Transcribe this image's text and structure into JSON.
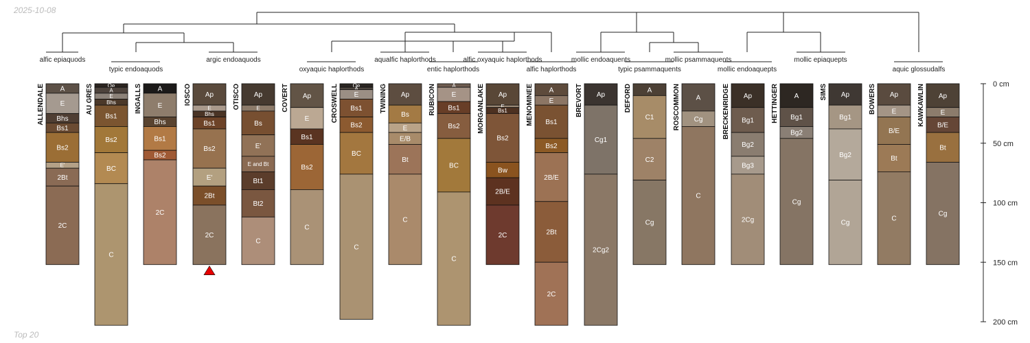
{
  "date": "2025-10-08",
  "footer": "Top 20",
  "depth_axis": {
    "unit": "cm",
    "min": 0,
    "max": 200,
    "ticks": [
      "0 cm",
      "50 cm",
      "100 cm",
      "150 cm",
      "200 cm"
    ]
  },
  "taxa": [
    "alfic epiaquods",
    "typic endoaquods",
    "argic endoaquods",
    "oxyaquic haplorthods",
    "aqualfic haplorthods",
    "entic haplorthods",
    "alfic oxyaquic haplorthods",
    "alfic haplorthods",
    "mollic endoaquents",
    "typic psammaquents",
    "mollic psammaquents",
    "mollic endoaquepts",
    "mollic epiaquepts",
    "aquic glossudalfs"
  ],
  "marker": {
    "profile": "IOSCO",
    "color": "#e60000"
  },
  "profiles": [
    {
      "name": "ALLENDALE",
      "horizons": [
        {
          "label": "A",
          "top": 0,
          "bottom": 8,
          "color": "#5d5147"
        },
        {
          "label": "E",
          "top": 8,
          "bottom": 25,
          "color": "#a59a90"
        },
        {
          "label": "Bhs",
          "top": 25,
          "bottom": 33,
          "color": "#4f3e33"
        },
        {
          "label": "Bs1",
          "top": 33,
          "bottom": 41,
          "color": "#6b4b32"
        },
        {
          "label": "Bs2",
          "top": 41,
          "bottom": 66,
          "color": "#9b6e35"
        },
        {
          "label": "E'",
          "top": 66,
          "bottom": 71,
          "color": "#b4a187"
        },
        {
          "label": "2Bt",
          "top": 71,
          "bottom": 86,
          "color": "#8a6b55"
        },
        {
          "label": "2C",
          "top": 86,
          "bottom": 152,
          "color": "#8b6b54"
        }
      ]
    },
    {
      "name": "AU GRES",
      "horizons": [
        {
          "label": "Oe",
          "top": 0,
          "bottom": 3,
          "color": "#2c2520"
        },
        {
          "label": "A",
          "top": 3,
          "bottom": 8,
          "color": "#4d433c"
        },
        {
          "label": "E",
          "top": 8,
          "bottom": 13,
          "color": "#8c8279"
        },
        {
          "label": "Bhs",
          "top": 13,
          "bottom": 18,
          "color": "#4b3829"
        },
        {
          "label": "Bs1",
          "top": 18,
          "bottom": 36,
          "color": "#7b5530"
        },
        {
          "label": "Bs2",
          "top": 36,
          "bottom": 58,
          "color": "#a27839"
        },
        {
          "label": "BC",
          "top": 58,
          "bottom": 84,
          "color": "#b38a52"
        },
        {
          "label": "C",
          "top": 84,
          "bottom": 203,
          "color": "#ad956f"
        }
      ]
    },
    {
      "name": "INGALLS",
      "horizons": [
        {
          "label": "A",
          "top": 0,
          "bottom": 8,
          "color": "#1c1a19"
        },
        {
          "label": "E",
          "top": 8,
          "bottom": 28,
          "color": "#8e7d6c"
        },
        {
          "label": "Bhs",
          "top": 28,
          "bottom": 36,
          "color": "#594330"
        },
        {
          "label": "Bs1",
          "top": 36,
          "bottom": 56,
          "color": "#b27a45"
        },
        {
          "label": "Bs2",
          "top": 56,
          "bottom": 64,
          "color": "#a05a35"
        },
        {
          "label": "2C",
          "top": 64,
          "bottom": 152,
          "color": "#ad8269"
        }
      ]
    },
    {
      "name": "IOSCO",
      "horizons": [
        {
          "label": "Ap",
          "top": 0,
          "bottom": 18,
          "color": "#5a4a3c"
        },
        {
          "label": "E",
          "top": 18,
          "bottom": 23,
          "color": "#a9998b"
        },
        {
          "label": "Bhs",
          "top": 23,
          "bottom": 28,
          "color": "#4a3425"
        },
        {
          "label": "Bs1",
          "top": 28,
          "bottom": 38,
          "color": "#6d4328"
        },
        {
          "label": "Bs2",
          "top": 38,
          "bottom": 71,
          "color": "#97724f"
        },
        {
          "label": "E'",
          "top": 71,
          "bottom": 86,
          "color": "#b3a080"
        },
        {
          "label": "2Bt",
          "top": 86,
          "bottom": 102,
          "color": "#7b4f2a"
        },
        {
          "label": "2C",
          "top": 102,
          "bottom": 152,
          "color": "#8a735e"
        }
      ]
    },
    {
      "name": "OTISCO",
      "horizons": [
        {
          "label": "Ap",
          "top": 0,
          "bottom": 18,
          "color": "#463a30"
        },
        {
          "label": "E",
          "top": 18,
          "bottom": 23,
          "color": "#8c7a69"
        },
        {
          "label": "Bs",
          "top": 23,
          "bottom": 43,
          "color": "#774f31"
        },
        {
          "label": "E'",
          "top": 43,
          "bottom": 61,
          "color": "#917257"
        },
        {
          "label": "E and Bt",
          "top": 61,
          "bottom": 74,
          "color": "#8a6a52"
        },
        {
          "label": "Bt1",
          "top": 74,
          "bottom": 89,
          "color": "#5b3d2b"
        },
        {
          "label": "Bt2",
          "top": 89,
          "bottom": 112,
          "color": "#7a5740"
        },
        {
          "label": "C",
          "top": 112,
          "bottom": 152,
          "color": "#ad8e79"
        }
      ]
    },
    {
      "name": "COVERT",
      "horizons": [
        {
          "label": "Ap",
          "top": 0,
          "bottom": 20,
          "color": "#625446"
        },
        {
          "label": "E",
          "top": 20,
          "bottom": 38,
          "color": "#bba893"
        },
        {
          "label": "Bs1",
          "top": 38,
          "bottom": 51,
          "color": "#5a3421"
        },
        {
          "label": "Bs2",
          "top": 51,
          "bottom": 89,
          "color": "#9c6636"
        },
        {
          "label": "C",
          "top": 89,
          "bottom": 152,
          "color": "#aa9276"
        }
      ]
    },
    {
      "name": "CROSWELL",
      "horizons": [
        {
          "label": "Oe",
          "top": 0,
          "bottom": 3,
          "color": "#2b2622"
        },
        {
          "label": "A",
          "top": 3,
          "bottom": 5,
          "color": "#4f4740"
        },
        {
          "label": "E",
          "top": 5,
          "bottom": 13,
          "color": "#9b8f85"
        },
        {
          "label": "Bs1",
          "top": 13,
          "bottom": 28,
          "color": "#7d5131"
        },
        {
          "label": "Bs2",
          "top": 28,
          "bottom": 41,
          "color": "#8c5a30"
        },
        {
          "label": "BC",
          "top": 41,
          "bottom": 76,
          "color": "#a3773f"
        },
        {
          "label": "C",
          "top": 76,
          "bottom": 198,
          "color": "#aa9272"
        }
      ]
    },
    {
      "name": "TWINING",
      "horizons": [
        {
          "label": "Ap",
          "top": 0,
          "bottom": 18,
          "color": "#5d4d40"
        },
        {
          "label": "Bs",
          "top": 18,
          "bottom": 33,
          "color": "#a37a44"
        },
        {
          "label": "E",
          "top": 33,
          "bottom": 41,
          "color": "#b9a388"
        },
        {
          "label": "E/B",
          "top": 41,
          "bottom": 51,
          "color": "#a88b6a"
        },
        {
          "label": "Bt",
          "top": 51,
          "bottom": 76,
          "color": "#9c7459"
        },
        {
          "label": "C",
          "top": 76,
          "bottom": 152,
          "color": "#aa8a6b"
        }
      ]
    },
    {
      "name": "RUBICON",
      "horizons": [
        {
          "label": "A",
          "top": 0,
          "bottom": 3,
          "color": "#6e5c50"
        },
        {
          "label": "E",
          "top": 3,
          "bottom": 15,
          "color": "#a59386"
        },
        {
          "label": "Bs1",
          "top": 15,
          "bottom": 25,
          "color": "#683e27"
        },
        {
          "label": "Bs2",
          "top": 25,
          "bottom": 46,
          "color": "#865d3f"
        },
        {
          "label": "BC",
          "top": 46,
          "bottom": 91,
          "color": "#a2793b"
        },
        {
          "label": "C",
          "top": 91,
          "bottom": 203,
          "color": "#ad9470"
        }
      ]
    },
    {
      "name": "MORGANLAKE",
      "horizons": [
        {
          "label": "Ap",
          "top": 0,
          "bottom": 18,
          "color": "#594737"
        },
        {
          "label": "E",
          "top": 18,
          "bottom": 20,
          "color": "#9c8976"
        },
        {
          "label": "Bs1",
          "top": 20,
          "bottom": 25,
          "color": "#4d3121"
        },
        {
          "label": "Bs2",
          "top": 25,
          "bottom": 66,
          "color": "#7e5538"
        },
        {
          "label": "Bw",
          "top": 66,
          "bottom": 79,
          "color": "#8a531f"
        },
        {
          "label": "2B/E",
          "top": 79,
          "bottom": 102,
          "color": "#5d3220"
        },
        {
          "label": "2C",
          "top": 102,
          "bottom": 152,
          "color": "#6e3a2e"
        }
      ]
    },
    {
      "name": "MENOMINEE",
      "horizons": [
        {
          "label": "A",
          "top": 0,
          "bottom": 10,
          "color": "#5e4b3c"
        },
        {
          "label": "E",
          "top": 10,
          "bottom": 18,
          "color": "#8c7665"
        },
        {
          "label": "Bs1",
          "top": 18,
          "bottom": 46,
          "color": "#7a5232"
        },
        {
          "label": "Bs2",
          "top": 46,
          "bottom": 58,
          "color": "#8c5a25"
        },
        {
          "label": "2B/E",
          "top": 58,
          "bottom": 99,
          "color": "#9c7254"
        },
        {
          "label": "2Bt",
          "top": 99,
          "bottom": 150,
          "color": "#8b5c3a"
        },
        {
          "label": "2C",
          "top": 150,
          "bottom": 203,
          "color": "#a07256"
        }
      ]
    },
    {
      "name": "BREVORT",
      "horizons": [
        {
          "label": "Ap",
          "top": 0,
          "bottom": 18,
          "color": "#3b3430"
        },
        {
          "label": "Cg1",
          "top": 18,
          "bottom": 76,
          "color": "#7e7368"
        },
        {
          "label": "2Cg2",
          "top": 76,
          "bottom": 203,
          "color": "#8b7866"
        }
      ]
    },
    {
      "name": "DEFORD",
      "horizons": [
        {
          "label": "A",
          "top": 0,
          "bottom": 10,
          "color": "#4c4035"
        },
        {
          "label": "C1",
          "top": 10,
          "bottom": 46,
          "color": "#a78c68"
        },
        {
          "label": "C2",
          "top": 46,
          "bottom": 81,
          "color": "#9e8267"
        },
        {
          "label": "Cg",
          "top": 81,
          "bottom": 152,
          "color": "#877765"
        }
      ]
    },
    {
      "name": "ROSCOMMON",
      "horizons": [
        {
          "label": "A",
          "top": 0,
          "bottom": 23,
          "color": "#5c5046"
        },
        {
          "label": "Cg",
          "top": 23,
          "bottom": 36,
          "color": "#a19280"
        },
        {
          "label": "C",
          "top": 36,
          "bottom": 152,
          "color": "#8f7660"
        }
      ]
    },
    {
      "name": "BRECKENRIDGE",
      "horizons": [
        {
          "label": "Ap",
          "top": 0,
          "bottom": 20,
          "color": "#3b3027"
        },
        {
          "label": "Bg1",
          "top": 20,
          "bottom": 41,
          "color": "#6e5c4e"
        },
        {
          "label": "Bg2",
          "top": 41,
          "bottom": 61,
          "color": "#8a7d70"
        },
        {
          "label": "Bg3",
          "top": 61,
          "bottom": 76,
          "color": "#a79a8c"
        },
        {
          "label": "2Cg",
          "top": 76,
          "bottom": 152,
          "color": "#a18d78"
        }
      ]
    },
    {
      "name": "HETTINGER",
      "horizons": [
        {
          "label": "A",
          "top": 0,
          "bottom": 20,
          "color": "#2d2722"
        },
        {
          "label": "Bg1",
          "top": 20,
          "bottom": 36,
          "color": "#5f5248"
        },
        {
          "label": "Bg2",
          "top": 36,
          "bottom": 46,
          "color": "#8a7f75"
        },
        {
          "label": "Cg",
          "top": 46,
          "bottom": 152,
          "color": "#857464"
        }
      ]
    },
    {
      "name": "SIMS",
      "horizons": [
        {
          "label": "Ap",
          "top": 0,
          "bottom": 18,
          "color": "#3f3833"
        },
        {
          "label": "Bg1",
          "top": 18,
          "bottom": 38,
          "color": "#a59684"
        },
        {
          "label": "Bg2",
          "top": 38,
          "bottom": 81,
          "color": "#b4a99b"
        },
        {
          "label": "Cg",
          "top": 81,
          "bottom": 152,
          "color": "#b1a596"
        }
      ]
    },
    {
      "name": "BOWERS",
      "horizons": [
        {
          "label": "Ap",
          "top": 0,
          "bottom": 18,
          "color": "#5a4b3f"
        },
        {
          "label": "E",
          "top": 18,
          "bottom": 28,
          "color": "#a49586"
        },
        {
          "label": "B/E",
          "top": 28,
          "bottom": 51,
          "color": "#937552"
        },
        {
          "label": "Bt",
          "top": 51,
          "bottom": 74,
          "color": "#9c7a56"
        },
        {
          "label": "C",
          "top": 74,
          "bottom": 152,
          "color": "#927b63"
        }
      ]
    },
    {
      "name": "KAWKAWLIN",
      "horizons": [
        {
          "label": "Ap",
          "top": 0,
          "bottom": 20,
          "color": "#4e4236"
        },
        {
          "label": "E",
          "top": 20,
          "bottom": 28,
          "color": "#8c7c6c"
        },
        {
          "label": "B/E",
          "top": 28,
          "bottom": 41,
          "color": "#654636"
        },
        {
          "label": "Bt",
          "top": 41,
          "bottom": 66,
          "color": "#99703f"
        },
        {
          "label": "Cg",
          "top": 66,
          "bottom": 152,
          "color": "#857363"
        }
      ]
    }
  ]
}
